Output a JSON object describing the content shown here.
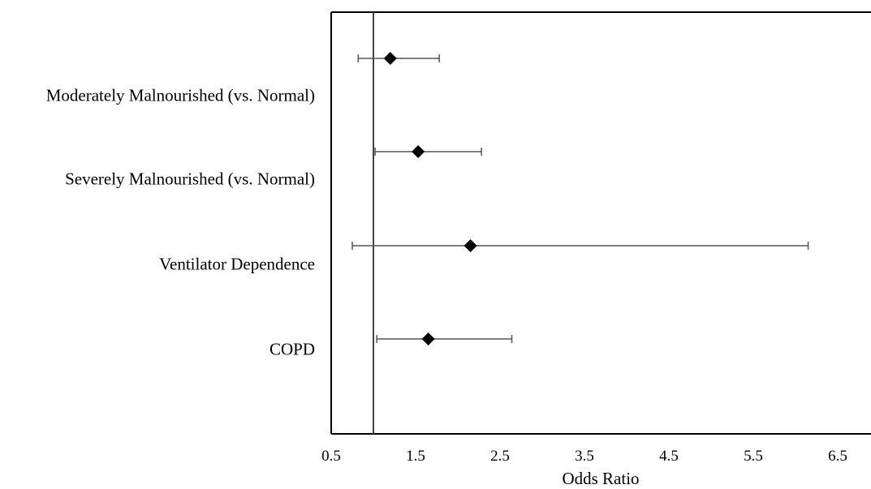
{
  "chart_data": {
    "type": "scatter",
    "subtype": "forest-plot",
    "xlabel": "Odds Ratio",
    "ylabel": "",
    "xlim": [
      0.5,
      7.0
    ],
    "xticks": [
      "0.5",
      "1.5",
      "2.5",
      "3.5",
      "4.5",
      "5.5",
      "6.5"
    ],
    "reference_line": 1.0,
    "grid": false,
    "categories": [
      "Moderately Malnourished (vs. Normal)",
      "Severely Malnourished (vs. Normal)",
      "Ventilator Dependence",
      "COPD"
    ],
    "estimates": [
      {
        "category": "Moderately Malnourished (vs. Normal)",
        "or": 1.2,
        "ci_low": 0.82,
        "ci_high": 1.78
      },
      {
        "category": "Severely Malnourished (vs. Normal)",
        "or": 1.53,
        "ci_low": 1.02,
        "ci_high": 2.28
      },
      {
        "category": "Ventilator Dependence",
        "or": 2.15,
        "ci_low": 0.75,
        "ci_high": 6.15
      },
      {
        "category": "COPD",
        "or": 1.65,
        "ci_low": 1.04,
        "ci_high": 2.64
      }
    ]
  }
}
